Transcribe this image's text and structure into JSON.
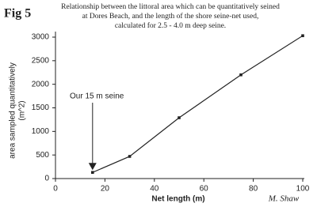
{
  "chart_data": {
    "type": "line",
    "fig_label": "Fig 5",
    "title": [
      "Relationship between the littoral area which can be quantitatively seined",
      "at Dores Beach, and the length of the shore seine-net used,",
      "calculated for 2.5 - 4.0 m deep seine."
    ],
    "x_label": "Net length (m)",
    "y_label": [
      "area sampled quantitatively",
      "(m^2)"
    ],
    "annotation": "Our 15 m seine",
    "credit": "M. Shaw",
    "x": [
      15,
      30,
      50,
      75,
      100
    ],
    "values": [
      130,
      470,
      1290,
      2200,
      3030
    ],
    "color": "#222222",
    "xlim": [
      0,
      100
    ],
    "xticks": [
      0,
      20,
      40,
      60,
      80,
      100
    ],
    "ylim": [
      0,
      3000
    ],
    "yticks": [
      0,
      500,
      1000,
      1500,
      2000,
      2500,
      3000
    ],
    "grid": false
  }
}
